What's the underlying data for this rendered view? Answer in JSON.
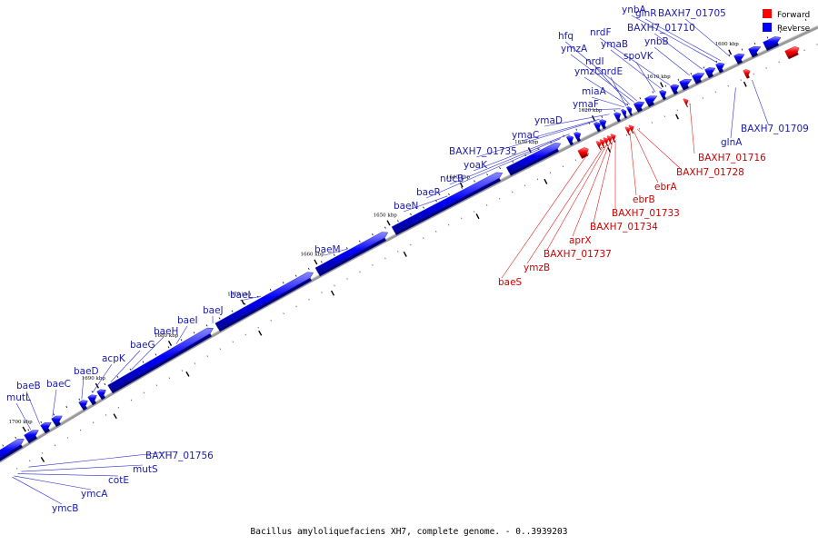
{
  "colors": {
    "forward": "#ff0000",
    "reverse": "#0000ff",
    "forward_label": "#cc0000",
    "reverse_label": "#1a1aa8",
    "axis": "#888888"
  },
  "legend": {
    "forward": "Forward",
    "reverse": "Reverse"
  },
  "caption": "Bacillus amyloliquefaciens XH7, complete genome. - 0..3939203",
  "tick_labels": [
    "1600 kbp",
    "1610 kbp",
    "1620 kbp",
    "1630 kbp",
    "1640 kbp",
    "1650 kbp",
    "1660 kbp",
    "1670 kbp",
    "1680 kbp",
    "1690 kbp",
    "1700 kbp"
  ],
  "reverse_labels": [
    "ynbA",
    "glnR",
    "BAXH7_01705",
    "BAXH7_01710",
    "ynbB",
    "nrdF",
    "ymaB",
    "spoVK",
    "hfq",
    "ymzA",
    "nrdI",
    "ymzC",
    "nrdE",
    "miaA",
    "ymaF",
    "ymaD",
    "ymaC",
    "BAXH7_01735",
    "yoaK",
    "nucB",
    "baeR",
    "baeN",
    "baeM",
    "baeL",
    "baeJ",
    "baeI",
    "baeH",
    "baeG",
    "acpK",
    "baeD",
    "baeC",
    "baeB",
    "mutL",
    "glnA",
    "BAXH7_01709",
    "BAXH7_01756",
    "mutS",
    "cotE",
    "ymcA",
    "ymcB"
  ],
  "forward_labels": [
    "BAXH7_01716",
    "BAXH7_01728",
    "ebrA",
    "ebrB",
    "BAXH7_01733",
    "BAXH7_01734",
    "aprX",
    "BAXH7_01737",
    "ymzB",
    "baeS"
  ]
}
